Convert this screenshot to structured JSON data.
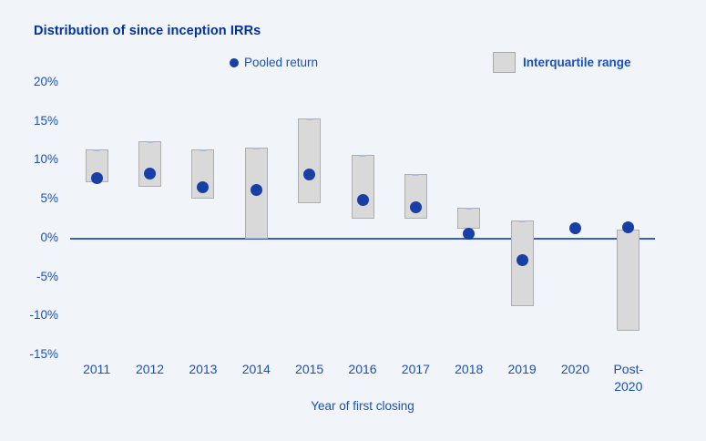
{
  "header": {
    "title": "Distribution of since inception IRRs"
  },
  "legend": {
    "pooled_label": "Pooled return",
    "iqr_label": "Interquartile range"
  },
  "colors": {
    "background": "#f1f4f8",
    "title_blue": "#0032a0",
    "label_blue": "#1a50be",
    "dot_blue": "#173fa5",
    "bar_fill": "#d9d9d9",
    "bar_border": "#aeaeae",
    "zero_line": "#3b5cc4"
  },
  "chart_data": {
    "type": "bar",
    "subtype": "interquartile-range-with-pooled-point",
    "title": "Distribution of since inception IRRs",
    "xlabel": "Year of first closing",
    "ylabel": "",
    "ylim": [
      -15,
      20
    ],
    "ytick_step": 5,
    "ytick_labels": [
      "20%",
      "15%",
      "10%",
      "5%",
      "0%",
      "-5%",
      "-10%",
      "-15%"
    ],
    "grid": false,
    "legend_position": "top",
    "categories": [
      "2011",
      "2012",
      "2013",
      "2014",
      "2015",
      "2016",
      "2017",
      "2018",
      "2019",
      "2020",
      "Post-2020"
    ],
    "series": [
      {
        "name": "Pooled return",
        "type": "point",
        "values": [
          7.8,
          8.4,
          6.6,
          6.3,
          8.2,
          4.9,
          4.0,
          0.6,
          -2.8,
          1.3,
          1.4
        ]
      },
      {
        "name": "Interquartile range",
        "type": "range",
        "low": [
          7.2,
          6.6,
          5.1,
          0.0,
          4.5,
          2.6,
          2.5,
          1.3,
          -8.7,
          null,
          -11.8
        ],
        "high": [
          11.4,
          12.5,
          11.4,
          11.7,
          15.4,
          10.7,
          8.3,
          4.0,
          2.3,
          null,
          1.1
        ]
      }
    ]
  }
}
